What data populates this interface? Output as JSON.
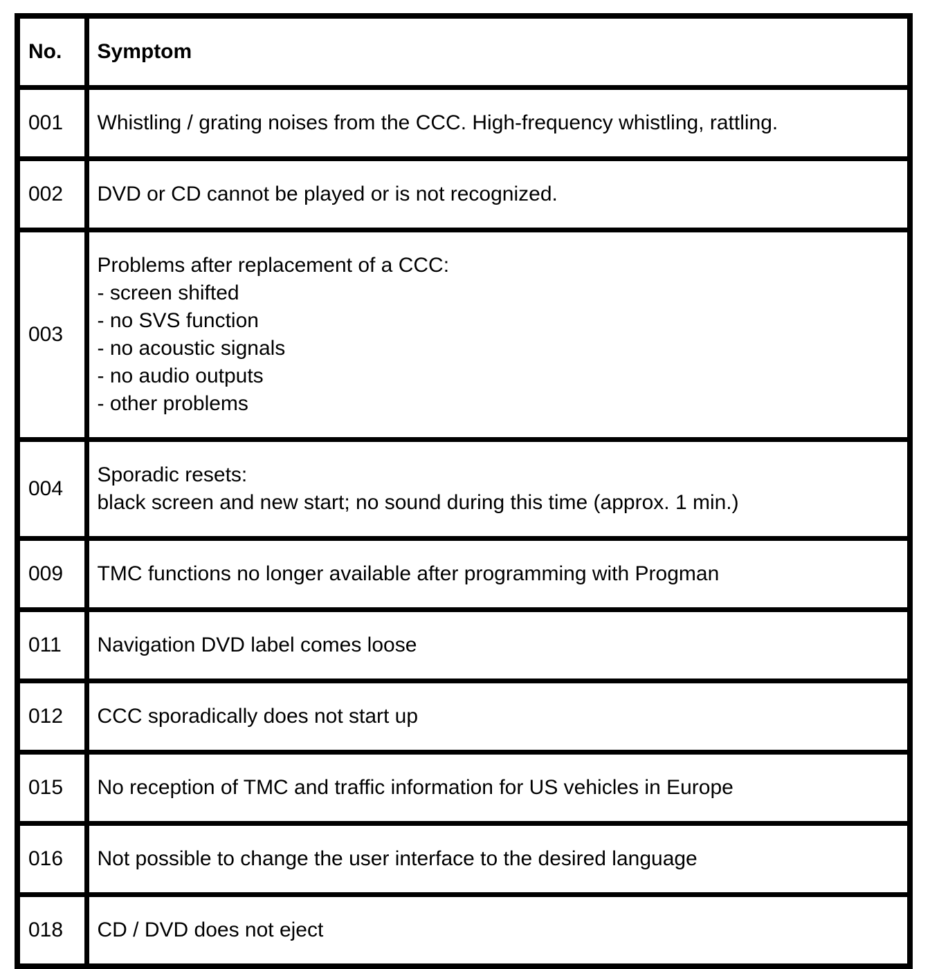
{
  "table": {
    "headers": {
      "no": "No.",
      "symptom": "Symptom"
    },
    "rows": [
      {
        "no": "001",
        "symptom": [
          "Whistling / grating noises from the CCC. High-frequency whistling, rattling."
        ]
      },
      {
        "no": "002",
        "symptom": [
          "DVD or CD cannot be played or is not recognized."
        ]
      },
      {
        "no": "003",
        "symptom": [
          "Problems after replacement of a CCC:",
          "- screen shifted",
          "- no SVS function",
          "- no acoustic signals",
          "- no audio outputs",
          "- other problems"
        ]
      },
      {
        "no": "004",
        "symptom": [
          "Sporadic resets:",
          "black screen and new start; no sound during this time (approx. 1 min.)"
        ]
      },
      {
        "no": "009",
        "symptom": [
          "TMC functions no longer available after programming with Progman"
        ]
      },
      {
        "no": "011",
        "symptom": [
          "Navigation DVD label comes loose"
        ]
      },
      {
        "no": "012",
        "symptom": [
          "CCC sporadically does not start up"
        ]
      },
      {
        "no": "015",
        "symptom": [
          "No reception of TMC and traffic information for US vehicles in Europe"
        ]
      },
      {
        "no": "016",
        "symptom": [
          "Not possible to change the user interface to the desired language"
        ]
      },
      {
        "no": "018",
        "symptom": [
          "CD / DVD does not eject"
        ]
      }
    ]
  }
}
